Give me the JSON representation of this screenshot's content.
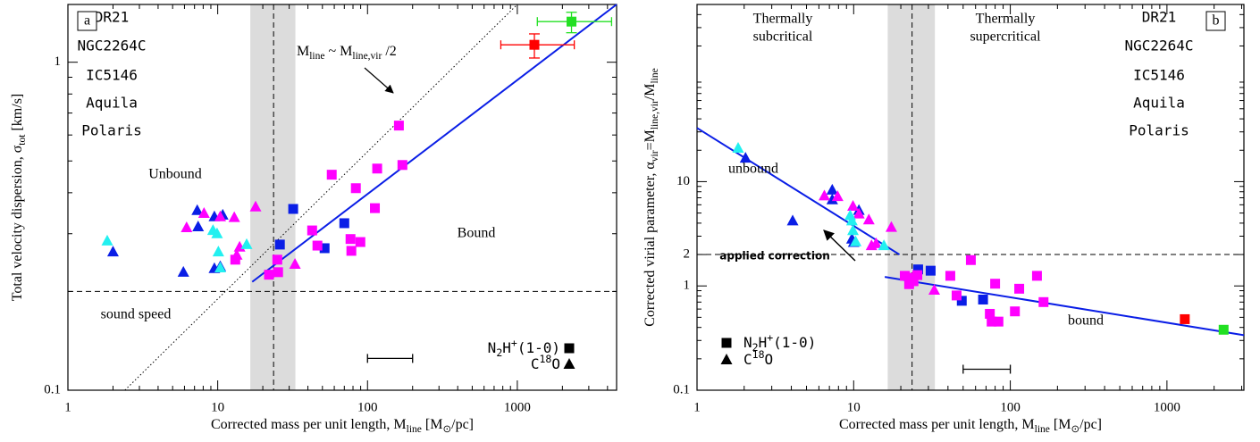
{
  "chart_data": [
    {
      "type": "scatter",
      "panel_label": "a",
      "xscale": "log",
      "yscale": "log",
      "xlim": [
        1,
        4600
      ],
      "ylim": [
        0.1,
        1.5
      ],
      "xticks": [
        1,
        10,
        100,
        1000
      ],
      "yticks": [
        0.1,
        1
      ],
      "xminorticks": [
        2,
        3,
        4,
        5,
        6,
        7,
        8,
        9,
        20,
        30,
        40,
        50,
        60,
        70,
        80,
        90,
        200,
        300,
        400,
        500,
        600,
        700,
        800,
        900,
        2000,
        3000,
        4000
      ],
      "yminorticks": [
        0.2,
        0.3,
        0.4,
        0.5,
        0.6,
        0.7,
        0.8,
        0.9
      ],
      "xlabel": [
        {
          "text": "Corrected mass per unit length,  M",
          "pos": "base"
        },
        {
          "text": "line",
          "pos": "sub"
        },
        {
          "text": " [M",
          "pos": "base"
        },
        {
          "text": "⊙",
          "pos": "sub"
        },
        {
          "text": "/pc]",
          "pos": "base"
        }
      ],
      "ylabel": [
        {
          "text": "Total velocity dispersion, σ",
          "pos": "base"
        },
        {
          "text": "tot",
          "pos": "sub"
        },
        {
          "text": " [km/s]",
          "pos": "base"
        }
      ],
      "series": [
        {
          "name": "DR21",
          "color": "#22e022",
          "x": [
            2300
          ],
          "values": [
            1.33
          ],
          "markers": [
            "square"
          ],
          "xerr": [
            [
              1360,
              4260
            ]
          ],
          "yerr": [
            [
              1.23,
              1.42
            ]
          ]
        },
        {
          "name": "NGC2264C",
          "color": "#ff0000",
          "x": [
            1300
          ],
          "values": [
            1.13
          ],
          "markers": [
            "square"
          ],
          "xerr": [
            [
              776,
              2400
            ]
          ],
          "yerr": [
            [
              1.03,
              1.22
            ]
          ]
        },
        {
          "name": "IC5146",
          "color": "#0a1ee6",
          "x": [
            2.0,
            5.9,
            7.3,
            7.4,
            9.5,
            10.4,
            9.5,
            10.8,
            26,
            31.9,
            51.7,
            70
          ],
          "values": [
            0.264,
            0.229,
            0.353,
            0.315,
            0.235,
            0.238,
            0.338,
            0.342,
            0.278,
            0.357,
            0.271,
            0.323
          ],
          "markers": [
            "triangle",
            "triangle",
            "triangle",
            "triangle",
            "triangle",
            "triangle",
            "triangle",
            "triangle",
            "square",
            "square",
            "square",
            "square"
          ]
        },
        {
          "name": "Aquila",
          "color": "#ff00ff",
          "x": [
            6.2,
            8.1,
            10.4,
            12.9,
            17.9,
            14.0,
            13.4,
            32.8,
            13.1,
            22,
            25,
            25.3,
            42.7,
            46.3,
            57.7,
            77,
            89.6,
            78,
            83.6,
            112,
            116,
            162,
            171
          ],
          "values": [
            0.313,
            0.346,
            0.338,
            0.336,
            0.362,
            0.273,
            0.258,
            0.242,
            0.25,
            0.225,
            0.25,
            0.229,
            0.307,
            0.276,
            0.454,
            0.289,
            0.283,
            0.266,
            0.413,
            0.359,
            0.474,
            0.641,
            0.486
          ],
          "markers": [
            "triangle",
            "triangle",
            "triangle",
            "triangle",
            "triangle",
            "triangle",
            "triangle",
            "triangle",
            "square",
            "square",
            "square",
            "square",
            "square",
            "square",
            "square",
            "square",
            "square",
            "square",
            "square",
            "square",
            "square",
            "square",
            "square"
          ]
        },
        {
          "name": "Polaris",
          "color": "#22f0f0",
          "x": [
            1.83,
            9.3,
            9.9,
            10.1,
            10.4,
            15.6
          ],
          "values": [
            0.285,
            0.307,
            0.3,
            0.264,
            0.236,
            0.278
          ],
          "markers": [
            "triangle",
            "triangle",
            "triangle",
            "triangle",
            "triangle",
            "triangle"
          ]
        }
      ],
      "fits": [
        {
          "x": [
            17,
            4600
          ],
          "values": [
            0.214,
            1.5
          ],
          "color": "#0a1ee6",
          "style": "solid"
        },
        {
          "x": [
            2.4,
            1000
          ],
          "values": [
            0.1,
            1.5
          ],
          "color": "#000000",
          "style": "dotted"
        }
      ],
      "hlines": [
        0.2
      ],
      "vlines": [
        23.6
      ],
      "band": [
        16.5,
        33
      ],
      "scale_bar": {
        "x": [
          100,
          200
        ],
        "y": 0.125
      },
      "annotations": [
        "Unbound",
        "Bound",
        "sound speed",
        [
          {
            "text": "M",
            "pos": "base"
          },
          {
            "text": "line",
            "pos": "sub"
          },
          {
            "text": " ~ M",
            "pos": "base"
          },
          {
            "text": "line,vir",
            "pos": "sub"
          },
          {
            "text": " /2",
            "pos": "base"
          }
        ]
      ],
      "marker_legend": [
        {
          "marker": "square",
          "label": [
            {
              "text": "N",
              "pos": "base"
            },
            {
              "text": "2",
              "pos": "sub"
            },
            {
              "text": "H",
              "pos": "base"
            },
            {
              "text": "+",
              "pos": "super"
            },
            {
              "text": "(1-0)",
              "pos": "base"
            }
          ]
        },
        {
          "marker": "triangle",
          "label": [
            {
              "text": "C",
              "pos": "base"
            },
            {
              "text": "18",
              "pos": "super"
            },
            {
              "text": "O",
              "pos": "base"
            }
          ]
        }
      ]
    },
    {
      "type": "scatter",
      "panel_label": "b",
      "xscale": "log",
      "yscale": "log",
      "xlim": [
        1,
        3100
      ],
      "ylim": [
        0.1,
        500
      ],
      "xticks": [
        1,
        10,
        100,
        1000
      ],
      "yticks": [
        0.1,
        1,
        2,
        10
      ],
      "xminorticks": [
        2,
        3,
        4,
        5,
        6,
        7,
        8,
        9,
        20,
        30,
        40,
        50,
        60,
        70,
        80,
        90,
        200,
        300,
        400,
        500,
        600,
        700,
        800,
        900,
        2000,
        3000
      ],
      "yminorticks": [
        0.2,
        0.3,
        0.4,
        0.5,
        0.6,
        0.7,
        0.8,
        0.9,
        3,
        4,
        5,
        6,
        7,
        8,
        9,
        20,
        30,
        40,
        50,
        60,
        70,
        80,
        90,
        200,
        300,
        400
      ],
      "xlabel": [
        {
          "text": "Corrected mass per unit length,  M",
          "pos": "base"
        },
        {
          "text": "line",
          "pos": "sub"
        },
        {
          "text": " [M",
          "pos": "base"
        },
        {
          "text": "⊙",
          "pos": "sub"
        },
        {
          "text": "/pc]",
          "pos": "base"
        }
      ],
      "ylabel": [
        {
          "text": "Corrected virial parameter, α",
          "pos": "base"
        },
        {
          "text": "vir",
          "pos": "sub"
        },
        {
          "text": "=M",
          "pos": "base"
        },
        {
          "text": "line,vir",
          "pos": "sub"
        },
        {
          "text": "/M",
          "pos": "base"
        },
        {
          "text": "line",
          "pos": "sub"
        }
      ],
      "series": [
        {
          "name": "DR21",
          "color": "#22e022",
          "x": [
            2300
          ],
          "values": [
            0.38
          ],
          "markers": [
            "square"
          ]
        },
        {
          "name": "NGC2264C",
          "color": "#ff0000",
          "x": [
            1300
          ],
          "values": [
            0.48
          ],
          "markers": [
            "square"
          ]
        },
        {
          "name": "IC5146",
          "color": "#0a1ee6",
          "x": [
            2.04,
            4.08,
            7.3,
            7.3,
            10.8,
            9.75,
            10,
            25.8,
            31,
            49,
            67
          ],
          "values": [
            16.8,
            4.2,
            8.3,
            6.7,
            5.3,
            2.81,
            2.61,
            1.44,
            1.4,
            0.72,
            0.74
          ],
          "markers": [
            "triangle",
            "triangle",
            "triangle",
            "triangle",
            "triangle",
            "triangle",
            "triangle",
            "square",
            "square",
            "square",
            "square"
          ]
        },
        {
          "name": "Aquila",
          "color": "#ff00ff",
          "x": [
            6.5,
            7.9,
            9.9,
            10.8,
            12.5,
            17.4,
            13,
            13.9,
            32.7,
            21.2,
            22.9,
            24.1,
            22.6,
            25.5,
            41.4,
            45.4,
            56,
            74,
            76,
            84,
            80,
            107,
            114,
            148,
            163
          ],
          "values": [
            7.3,
            7.2,
            5.8,
            4.9,
            4.3,
            3.64,
            2.43,
            2.54,
            0.91,
            1.25,
            1.2,
            1.11,
            1.04,
            1.27,
            1.25,
            0.81,
            1.77,
            0.54,
            0.455,
            0.455,
            1.05,
            0.57,
            0.94,
            1.25,
            0.7
          ],
          "markers": [
            "triangle",
            "triangle",
            "triangle",
            "triangle",
            "triangle",
            "triangle",
            "triangle",
            "triangle",
            "triangle",
            "square",
            "square",
            "square",
            "square",
            "square",
            "square",
            "square",
            "square",
            "square",
            "square",
            "square",
            "square",
            "square",
            "square",
            "square",
            "square"
          ]
        },
        {
          "name": "Polaris",
          "color": "#22f0f0",
          "x": [
            1.83,
            9.5,
            9.75,
            9.9,
            10.3,
            15.6
          ],
          "values": [
            20.9,
            4.72,
            4.2,
            3.39,
            2.65,
            2.43
          ],
          "markers": [
            "triangle",
            "triangle",
            "triangle",
            "triangle",
            "triangle",
            "triangle"
          ]
        }
      ],
      "fits": [
        {
          "x": [
            1,
            19.6
          ],
          "values": [
            32.7,
            2
          ],
          "color": "#0a1ee6",
          "style": "solid"
        },
        {
          "x": [
            15.8,
            3100
          ],
          "values": [
            1.22,
            0.337
          ],
          "color": "#0a1ee6",
          "style": "solid"
        }
      ],
      "hlines": [
        2
      ],
      "vlines": [
        23.6
      ],
      "band": [
        16.5,
        33
      ],
      "scale_bar": {
        "x": [
          50,
          100
        ],
        "y": 0.159
      },
      "annotations": [
        "Thermally",
        "subcritical",
        "Thermally",
        "supercritical",
        "unbound",
        "bound",
        "applied correction"
      ],
      "marker_legend": [
        {
          "marker": "square",
          "label": [
            {
              "text": "N",
              "pos": "base"
            },
            {
              "text": "2",
              "pos": "sub"
            },
            {
              "text": "H",
              "pos": "base"
            },
            {
              "text": "+",
              "pos": "super"
            },
            {
              "text": "(1-0)",
              "pos": "base"
            }
          ]
        },
        {
          "marker": "triangle",
          "label": [
            {
              "text": "C",
              "pos": "base"
            },
            {
              "text": "18",
              "pos": "super"
            },
            {
              "text": "O",
              "pos": "base"
            }
          ]
        }
      ]
    }
  ]
}
